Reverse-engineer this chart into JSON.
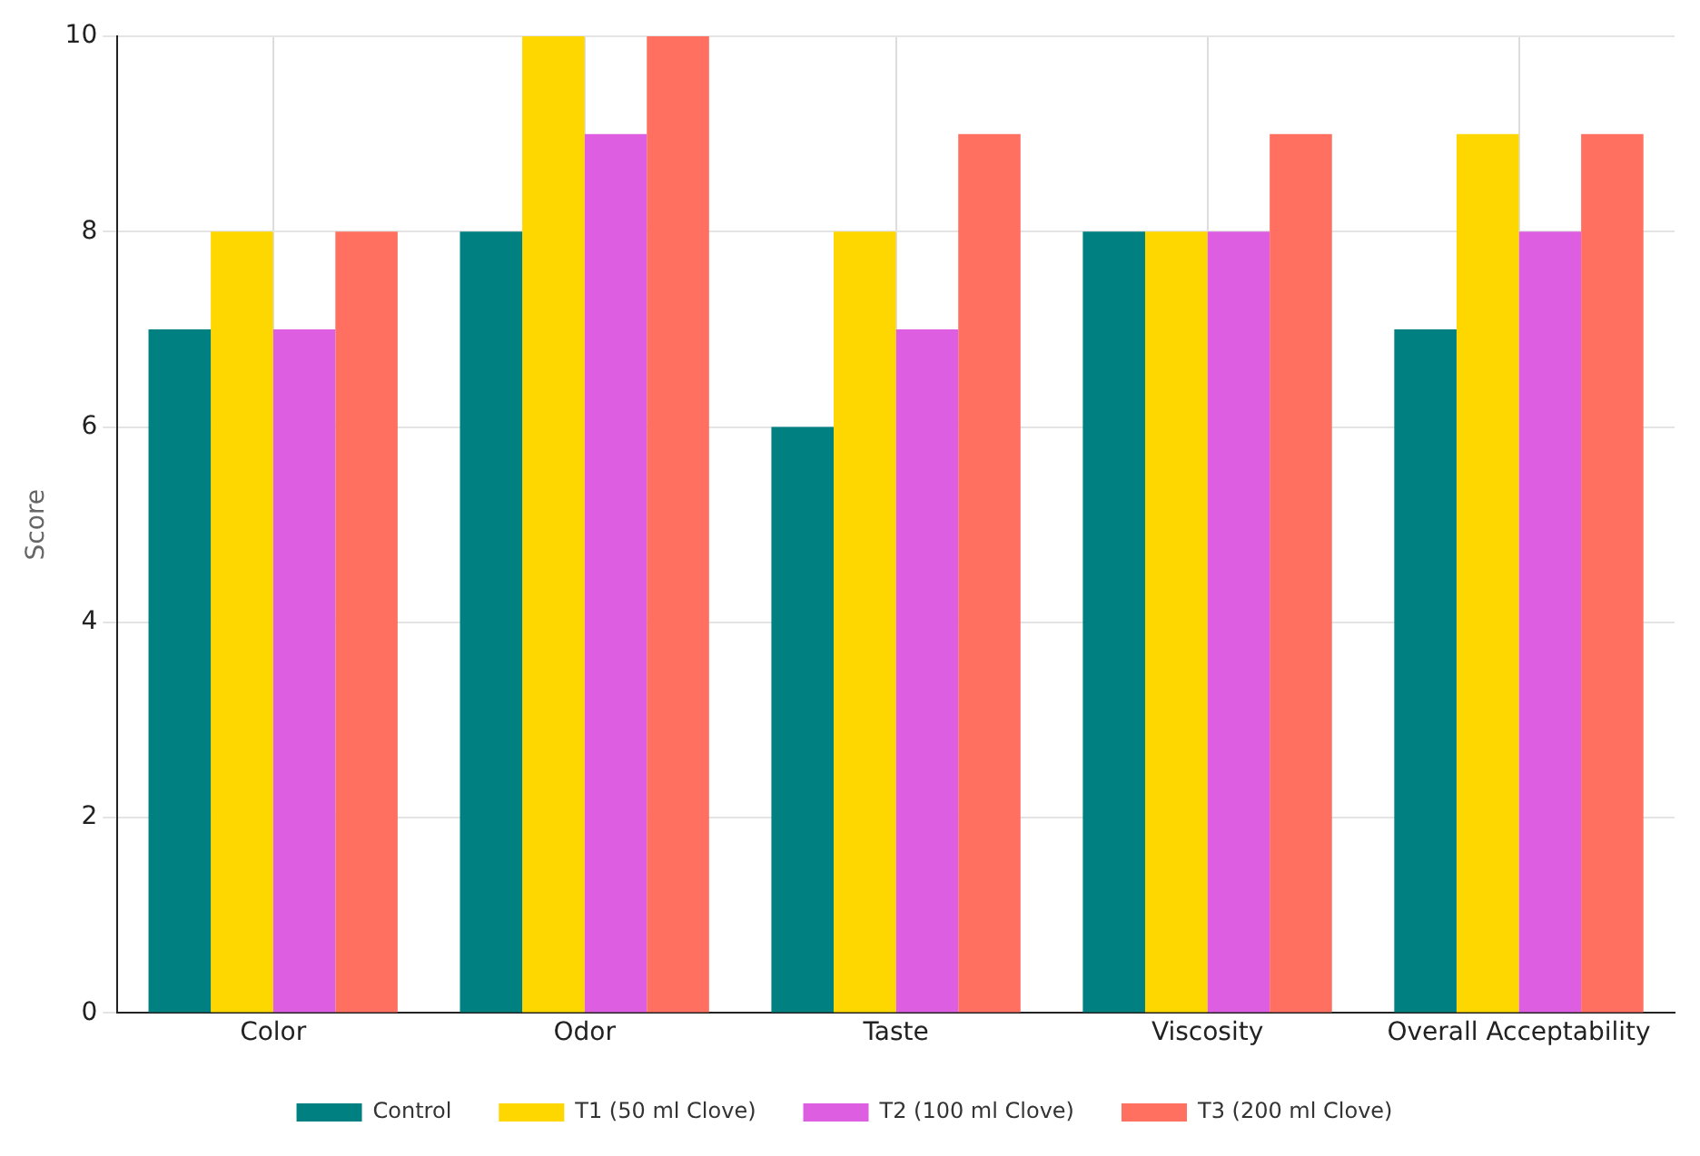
{
  "chart_data": {
    "type": "bar",
    "ylabel": "Score",
    "categories": [
      "Color",
      "Odor",
      "Taste",
      "Viscosity",
      "Overall Acceptability"
    ],
    "series": [
      {
        "name": "Control",
        "color": "#008080",
        "values": [
          7,
          8,
          6,
          8,
          7
        ]
      },
      {
        "name": "T1 (50 ml Clove)",
        "color": "#ffd700",
        "values": [
          8,
          10,
          8,
          8,
          9
        ]
      },
      {
        "name": "T2 (100 ml Clove)",
        "color": "#dd5ee0",
        "values": [
          7,
          9,
          7,
          8,
          8
        ]
      },
      {
        "name": "T3 (200 ml Clove)",
        "color": "#ff7060",
        "values": [
          8,
          10,
          9,
          9,
          9
        ]
      }
    ],
    "ylim": [
      0,
      10
    ],
    "yticks": [
      0,
      2,
      4,
      6,
      8,
      10
    ],
    "grid": true,
    "legend": "bottom"
  }
}
